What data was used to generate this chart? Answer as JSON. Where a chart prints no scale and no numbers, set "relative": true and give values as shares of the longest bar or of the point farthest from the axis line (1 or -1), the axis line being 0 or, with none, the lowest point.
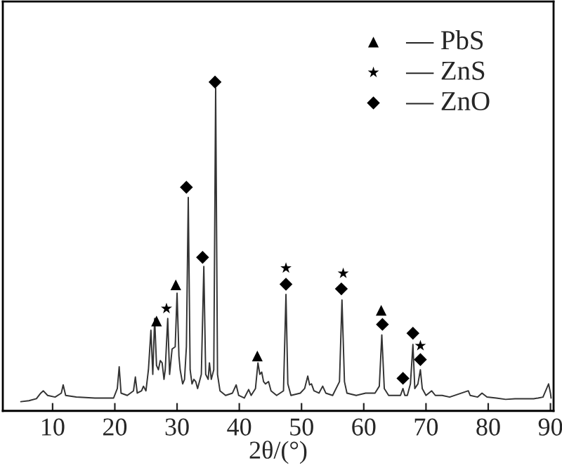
{
  "chart_data": {
    "type": "line",
    "relative": true,
    "xlabel": "2θ/(°)",
    "xlim": [
      2,
      90.5
    ],
    "xticks": [
      10,
      20,
      30,
      40,
      50,
      60,
      70,
      80,
      90
    ],
    "tick_labels": "x",
    "grid": false,
    "legend": "top right",
    "series": [
      {
        "color": "#333333",
        "marker": "none",
        "line_style": "solid",
        "x": [
          4.9,
          6.2,
          7.4,
          8.1,
          8.5,
          9.2,
          10.4,
          11.4,
          11.7,
          12.1,
          13.8,
          16.8,
          19.8,
          20.4,
          20.7,
          21.0,
          22.0,
          23.0,
          23.3,
          23.6,
          24.3,
          24.6,
          25.0,
          25.4,
          25.8,
          26.1,
          26.4,
          26.7,
          27.0,
          27.3,
          27.6,
          27.9,
          28.1,
          28.5,
          28.8,
          29.2,
          29.7,
          30.0,
          30.3,
          30.5,
          30.9,
          31.2,
          31.5,
          31.8,
          32.1,
          32.4,
          32.7,
          33.0,
          33.3,
          33.9,
          34.3,
          34.6,
          35.0,
          35.2,
          35.5,
          35.9,
          36.2,
          36.5,
          36.9,
          37.8,
          38.9,
          39.5,
          39.9,
          40.8,
          41.5,
          41.9,
          42.6,
          43.0,
          43.3,
          43.6,
          43.9,
          44.2,
          44.7,
          45.1,
          46.0,
          47.1,
          47.5,
          47.8,
          48.3,
          49.8,
          50.5,
          51.0,
          51.3,
          51.6,
          52.0,
          52.8,
          53.4,
          53.9,
          55.0,
          56.1,
          56.5,
          56.9,
          57.3,
          58.8,
          60.3,
          61.8,
          62.5,
          62.9,
          63.3,
          64.0,
          65.1,
          65.9,
          66.3,
          66.6,
          67.0,
          67.5,
          67.9,
          68.2,
          68.7,
          69.1,
          69.4,
          70.0,
          70.9,
          71.5,
          72.6,
          73.8,
          76.8,
          77.1,
          78.3,
          79.0,
          79.8,
          81.3,
          82.8,
          84.3,
          85.8,
          87.3,
          88.0,
          88.8,
          89.7,
          90.0,
          90.1
        ],
        "values": [
          0.028,
          0.031,
          0.037,
          0.054,
          0.061,
          0.047,
          0.042,
          0.054,
          0.079,
          0.047,
          0.042,
          0.039,
          0.039,
          0.068,
          0.134,
          0.054,
          0.047,
          0.061,
          0.103,
          0.054,
          0.061,
          0.075,
          0.061,
          0.125,
          0.245,
          0.111,
          0.281,
          0.138,
          0.125,
          0.153,
          0.146,
          0.096,
          0.125,
          0.281,
          0.111,
          0.188,
          0.195,
          0.358,
          0.167,
          0.125,
          0.082,
          0.096,
          0.195,
          0.649,
          0.125,
          0.082,
          0.096,
          0.089,
          0.068,
          0.111,
          0.439,
          0.111,
          0.096,
          0.146,
          0.096,
          0.125,
          0.981,
          0.111,
          0.061,
          0.047,
          0.054,
          0.079,
          0.047,
          0.039,
          0.065,
          0.047,
          0.068,
          0.146,
          0.111,
          0.118,
          0.089,
          0.082,
          0.089,
          0.061,
          0.047,
          0.061,
          0.354,
          0.082,
          0.047,
          0.054,
          0.068,
          0.106,
          0.079,
          0.082,
          0.061,
          0.054,
          0.075,
          0.054,
          0.047,
          0.089,
          0.337,
          0.089,
          0.054,
          0.047,
          0.054,
          0.054,
          0.075,
          0.231,
          0.068,
          0.047,
          0.047,
          0.047,
          0.068,
          0.047,
          0.047,
          0.082,
          0.202,
          0.068,
          0.082,
          0.125,
          0.068,
          0.047,
          0.061,
          0.047,
          0.047,
          0.042,
          0.061,
          0.047,
          0.042,
          0.054,
          0.042,
          0.039,
          0.035,
          0.037,
          0.037,
          0.037,
          0.039,
          0.042,
          0.082,
          0.054,
          0.039
        ]
      },
      {
        "type": "scatter",
        "name": "— PbS",
        "color": "#000000",
        "marker": "triangle",
        "x": [
          26.7,
          29.8,
          42.9,
          62.8
        ],
        "values": [
          0.273,
          0.383,
          0.167,
          0.306
        ]
      },
      {
        "type": "scatter",
        "name": "— ZnS",
        "color": "#000000",
        "marker": "star",
        "x": [
          28.3,
          47.5,
          56.7,
          69.1
        ],
        "values": [
          0.311,
          0.434,
          0.418,
          0.198
        ]
      },
      {
        "type": "scatter",
        "name": "— ZnO",
        "color": "#000000",
        "marker": "diamond",
        "x": [
          31.5,
          34.1,
          36.1,
          47.5,
          56.4,
          63.0,
          66.3,
          67.9,
          69.1
        ],
        "values": [
          0.68,
          0.467,
          1,
          0.385,
          0.371,
          0.263,
          0.099,
          0.236,
          0.156
        ]
      }
    ]
  }
}
